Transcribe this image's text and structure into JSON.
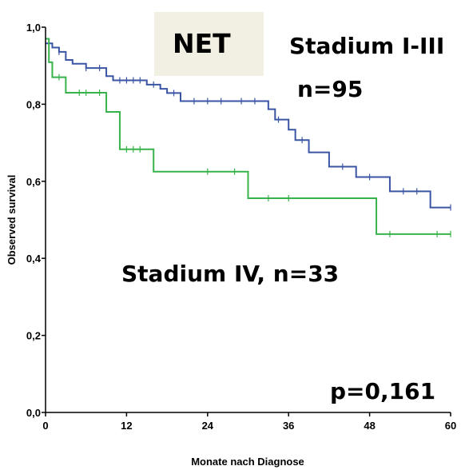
{
  "chart_data": {
    "type": "line",
    "xlabel": "Monate nach Diagnose",
    "ylabel": "Observed survival",
    "xlim": [
      0,
      60
    ],
    "ylim": [
      0,
      1
    ],
    "x_ticks": [
      "0",
      "12",
      "24",
      "36",
      "48",
      "60"
    ],
    "y_ticks": [
      "0,0",
      "0,2",
      "0,4",
      "0,6",
      "0,8",
      "1,0"
    ],
    "grid": false,
    "annotations": {
      "net_label": "NET",
      "stadium_i_iii": "Stadium I-III",
      "n_i_iii": "n=95",
      "stadium_iv": "Stadium IV, n=33",
      "p_value": "p=0,161"
    },
    "series": [
      {
        "label_ref": "stadium_i_iii",
        "color": "#3a55a4",
        "steps": [
          [
            0,
            0.958
          ],
          [
            1,
            0.947
          ],
          [
            2,
            0.936
          ],
          [
            3,
            0.915
          ],
          [
            4,
            0.905
          ],
          [
            6,
            0.894
          ],
          [
            9,
            0.873
          ],
          [
            10,
            0.862
          ],
          [
            15,
            0.851
          ],
          [
            17,
            0.84
          ],
          [
            18,
            0.829
          ],
          [
            20,
            0.808
          ],
          [
            33,
            0.787
          ],
          [
            34,
            0.76
          ],
          [
            36,
            0.734
          ],
          [
            37,
            0.707
          ],
          [
            39,
            0.675
          ],
          [
            42,
            0.638
          ],
          [
            46,
            0.611
          ],
          [
            51,
            0.574
          ],
          [
            57,
            0.532
          ],
          [
            60,
            0.532
          ]
        ],
        "censored": [
          [
            2,
            0.936
          ],
          [
            6,
            0.894
          ],
          [
            8,
            0.894
          ],
          [
            11,
            0.862
          ],
          [
            12,
            0.862
          ],
          [
            13,
            0.862
          ],
          [
            14,
            0.862
          ],
          [
            16,
            0.851
          ],
          [
            19,
            0.829
          ],
          [
            22,
            0.808
          ],
          [
            24,
            0.808
          ],
          [
            26,
            0.808
          ],
          [
            29,
            0.808
          ],
          [
            31,
            0.808
          ],
          [
            34.5,
            0.76
          ],
          [
            38,
            0.707
          ],
          [
            44,
            0.638
          ],
          [
            48,
            0.611
          ],
          [
            53,
            0.574
          ],
          [
            55,
            0.574
          ],
          [
            60,
            0.532
          ]
        ]
      },
      {
        "label_ref": "stadium_iv",
        "color": "#38b24a",
        "steps": [
          [
            0,
            0.97
          ],
          [
            0.5,
            0.909
          ],
          [
            1,
            0.87
          ],
          [
            3,
            0.83
          ],
          [
            9,
            0.78
          ],
          [
            11,
            0.683
          ],
          [
            16,
            0.625
          ],
          [
            30,
            0.556
          ],
          [
            49,
            0.463
          ],
          [
            60,
            0.463
          ]
        ],
        "censored": [
          [
            2,
            0.87
          ],
          [
            5,
            0.83
          ],
          [
            6,
            0.83
          ],
          [
            8,
            0.83
          ],
          [
            12,
            0.683
          ],
          [
            13,
            0.683
          ],
          [
            14,
            0.683
          ],
          [
            24,
            0.625
          ],
          [
            28,
            0.625
          ],
          [
            33,
            0.556
          ],
          [
            36,
            0.556
          ],
          [
            51,
            0.463
          ],
          [
            58,
            0.463
          ],
          [
            60,
            0.463
          ]
        ]
      }
    ]
  }
}
